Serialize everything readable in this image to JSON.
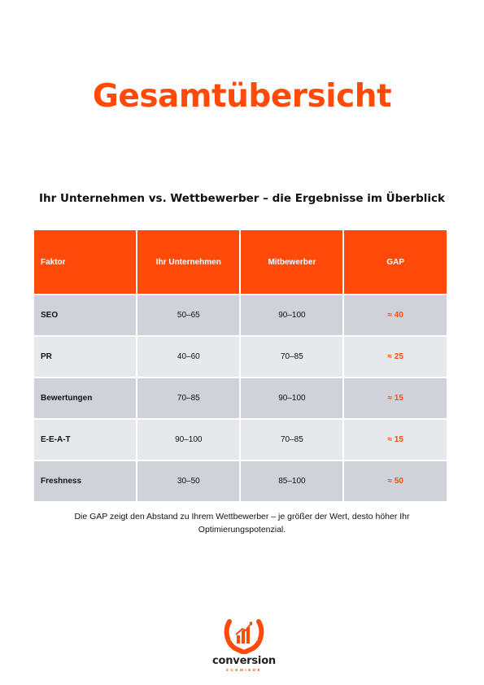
{
  "page": {
    "title": "Gesamtübersicht",
    "subtitle": "Ihr Unternehmen vs. Wettbewerber – die Ergebnisse im Überblick"
  },
  "table": {
    "headers": [
      "Faktor",
      "Ihr Unternehmen",
      "Mitbewerber",
      "GAP"
    ],
    "rows": [
      {
        "factor": "SEO",
        "company": "50–65",
        "competitor": "90–100",
        "gap": "≈ 40"
      },
      {
        "factor": "PR",
        "company": "40–60",
        "competitor": "70–85",
        "gap": "≈ 25"
      },
      {
        "factor": "Bewertungen",
        "company": "70–85",
        "competitor": "90–100",
        "gap": "≈ 15"
      },
      {
        "factor": "E-E-A-T",
        "company": "90–100",
        "competitor": "70–85",
        "gap": "≈ 15"
      },
      {
        "factor": "Freshness",
        "company": "30–50",
        "competitor": "85–100",
        "gap": "≈ 50"
      }
    ]
  },
  "note": {
    "line1": "Die GAP zeigt den Abstand zu Ihrem Wettbewerber – je größer der Wert, desto höher Ihr",
    "line2": "Optimierungspotenzial."
  },
  "logo": {
    "word": "conversion",
    "sub": "SCHMIEDE",
    "icon": "horseshoe-bar-chart-icon"
  },
  "colors": {
    "accent": "#ff4a0a",
    "row_dark": "#cfd2d8",
    "row_light": "#e6e8ec"
  }
}
